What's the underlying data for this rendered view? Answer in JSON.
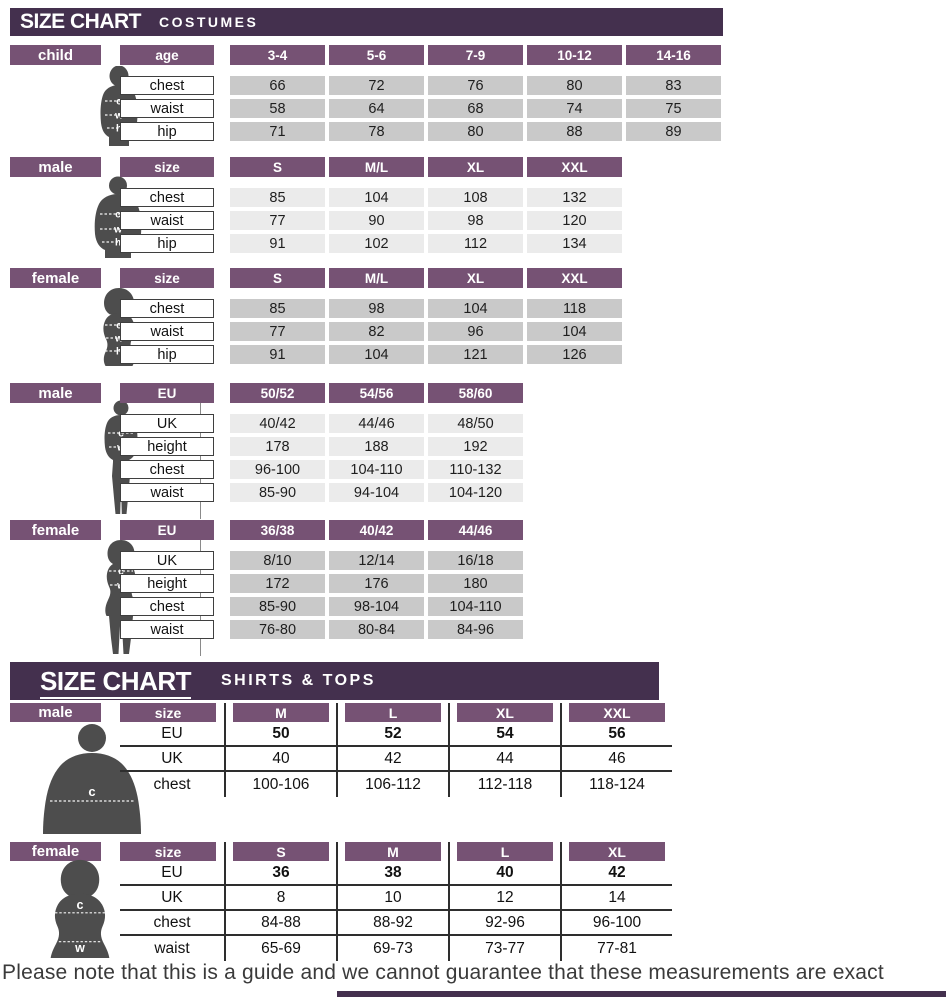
{
  "headers": {
    "costumes": {
      "title": "SIZE CHART",
      "subtitle": "COSTUMES"
    },
    "shirts": {
      "title": "SIZE CHART",
      "subtitle": "SHIRTS & TOPS"
    }
  },
  "figures": {
    "cwh": [
      "c",
      "w",
      "h"
    ],
    "h": "h"
  },
  "note": "Please note that this is a guide and we cannot guarantee that these measurements are exact",
  "colors": {
    "header_bg": "#44304e",
    "bar_bg": "#765274",
    "cell_gray": "#c9c9c9",
    "cell_light": "#ebebeb",
    "figure_gray": "#4d4d4d",
    "table_line": "#2e2e2e"
  },
  "costume_sections": [
    {
      "gender": "child",
      "header_label": "age",
      "shade": "dark",
      "columns": [
        "3-4",
        "5-6",
        "7-9",
        "10-12",
        "14-16"
      ],
      "rows": [
        {
          "label": "chest",
          "values": [
            "66",
            "72",
            "76",
            "80",
            "83"
          ]
        },
        {
          "label": "waist",
          "values": [
            "58",
            "64",
            "68",
            "74",
            "75"
          ]
        },
        {
          "label": "hip",
          "values": [
            "71",
            "78",
            "80",
            "88",
            "89"
          ]
        }
      ]
    },
    {
      "gender": "male",
      "header_label": "size",
      "shade": "light",
      "columns": [
        "S",
        "M/L",
        "XL",
        "XXL"
      ],
      "rows": [
        {
          "label": "chest",
          "values": [
            "85",
            "104",
            "108",
            "132"
          ]
        },
        {
          "label": "waist",
          "values": [
            "77",
            "90",
            "98",
            "120"
          ]
        },
        {
          "label": "hip",
          "values": [
            "91",
            "102",
            "112",
            "134"
          ]
        }
      ]
    },
    {
      "gender": "female",
      "header_label": "size",
      "shade": "dark",
      "columns": [
        "S",
        "M/L",
        "XL",
        "XXL"
      ],
      "rows": [
        {
          "label": "chest",
          "values": [
            "85",
            "98",
            "104",
            "118"
          ]
        },
        {
          "label": "waist",
          "values": [
            "77",
            "82",
            "96",
            "104"
          ]
        },
        {
          "label": "hip",
          "values": [
            "91",
            "104",
            "121",
            "126"
          ]
        }
      ]
    },
    {
      "gender": "male",
      "header_label": "EU",
      "shade": "light",
      "columns": [
        "50/52",
        "54/56",
        "58/60"
      ],
      "rows": [
        {
          "label": "UK",
          "values": [
            "40/42",
            "44/46",
            "48/50"
          ]
        },
        {
          "label": "height",
          "values": [
            "178",
            "188",
            "192"
          ]
        },
        {
          "label": "chest",
          "values": [
            "96-100",
            "104-110",
            "110-132"
          ]
        },
        {
          "label": "waist",
          "values": [
            "85-90",
            "94-104",
            "104-120"
          ]
        }
      ]
    },
    {
      "gender": "female",
      "header_label": "EU",
      "shade": "dark",
      "columns": [
        "36/38",
        "40/42",
        "44/46"
      ],
      "rows": [
        {
          "label": "UK",
          "values": [
            "8/10",
            "12/14",
            "16/18"
          ]
        },
        {
          "label": "height",
          "values": [
            "172",
            "176",
            "180"
          ]
        },
        {
          "label": "chest",
          "values": [
            "85-90",
            "98-104",
            "104-110"
          ]
        },
        {
          "label": "waist",
          "values": [
            "76-80",
            "80-84",
            "84-96"
          ]
        }
      ]
    }
  ],
  "shirt_sections": [
    {
      "gender": "male",
      "header_label": "size",
      "columns": [
        "M",
        "L",
        "XL",
        "XXL"
      ],
      "rows": [
        {
          "label": "EU",
          "bold": true,
          "values": [
            "50",
            "52",
            "54",
            "56"
          ]
        },
        {
          "label": "UK",
          "bold": false,
          "values": [
            "40",
            "42",
            "44",
            "46"
          ]
        },
        {
          "label": "chest",
          "bold": false,
          "values": [
            "100-106",
            "106-112",
            "112-118",
            "118-124"
          ]
        }
      ]
    },
    {
      "gender": "female",
      "header_label": "size",
      "columns": [
        "S",
        "M",
        "L",
        "XL"
      ],
      "rows": [
        {
          "label": "EU",
          "bold": true,
          "values": [
            "36",
            "38",
            "40",
            "42"
          ]
        },
        {
          "label": "UK",
          "bold": false,
          "values": [
            "8",
            "10",
            "12",
            "14"
          ]
        },
        {
          "label": "chest",
          "bold": false,
          "values": [
            "84-88",
            "88-92",
            "92-96",
            "96-100"
          ]
        },
        {
          "label": "waist",
          "bold": false,
          "values": [
            "65-69",
            "69-73",
            "73-77",
            "77-81"
          ]
        }
      ]
    }
  ]
}
